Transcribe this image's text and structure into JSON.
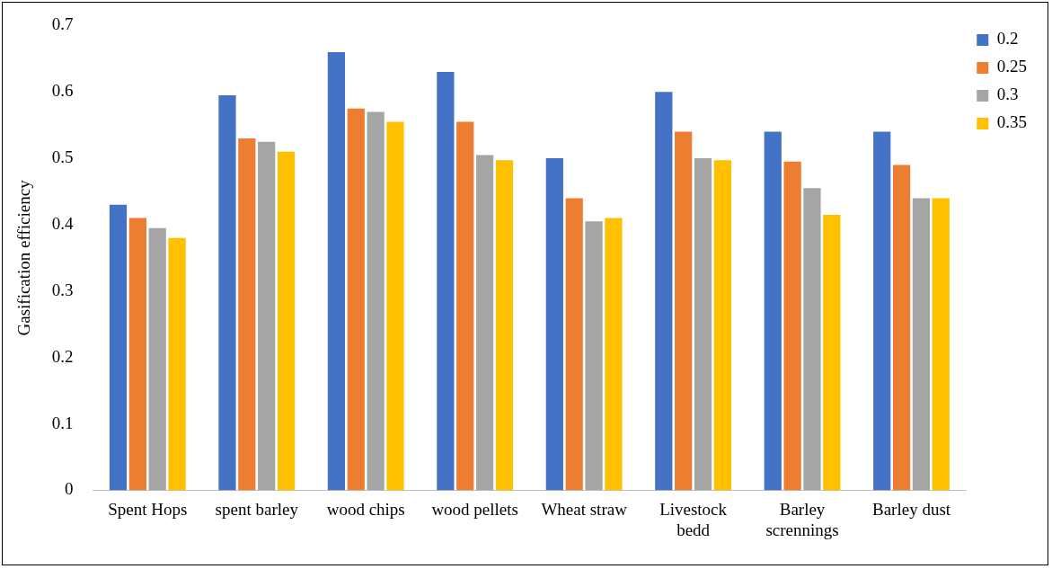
{
  "chart_data": {
    "type": "bar",
    "ylabel": "Gasification efficiency",
    "categories": [
      "Spent Hops",
      "spent barley",
      "wood chips",
      "wood pellets",
      "Wheat straw",
      "Livestock bedd",
      "Barley scrennings",
      "Barley dust"
    ],
    "series": [
      {
        "name": "0.2",
        "color": "#4472c4",
        "values": [
          0.43,
          0.595,
          0.66,
          0.63,
          0.5,
          0.6,
          0.54,
          0.54
        ]
      },
      {
        "name": "0.25",
        "color": "#ed7d31",
        "values": [
          0.41,
          0.53,
          0.575,
          0.555,
          0.44,
          0.54,
          0.495,
          0.49
        ]
      },
      {
        "name": "0.3",
        "color": "#a5a5a5",
        "values": [
          0.395,
          0.525,
          0.57,
          0.505,
          0.405,
          0.5,
          0.455,
          0.44
        ]
      },
      {
        "name": "0.35",
        "color": "#ffc000",
        "values": [
          0.38,
          0.51,
          0.555,
          0.497,
          0.41,
          0.497,
          0.415,
          0.44
        ]
      }
    ],
    "ylim": [
      0,
      0.7
    ],
    "yticks": [
      0,
      0.1,
      0.2,
      0.3,
      0.4,
      0.5,
      0.6,
      0.7
    ],
    "grid": false,
    "legend": "top right"
  }
}
